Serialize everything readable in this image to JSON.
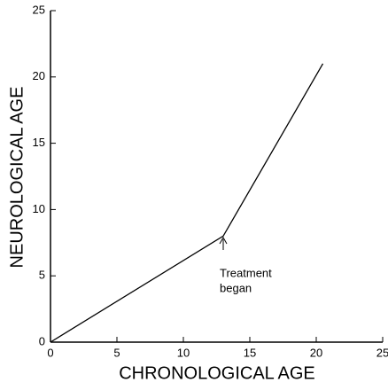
{
  "chart_data": {
    "type": "line",
    "xlabel": "CHRONOLOGICAL  AGE",
    "ylabel": "NEUROLOGICAL  AGE",
    "x": [
      0,
      13,
      20.5
    ],
    "series": [
      {
        "color": "#000000",
        "values": [
          0,
          8,
          21
        ]
      }
    ],
    "xlim": [
      0,
      25
    ],
    "xticks": [
      0,
      5,
      10,
      15,
      20,
      25
    ],
    "ylim": [
      0,
      25
    ],
    "yticks": [
      0,
      5,
      10,
      15,
      20,
      25
    ],
    "annotation": [
      "Treatment",
      "began"
    ]
  }
}
